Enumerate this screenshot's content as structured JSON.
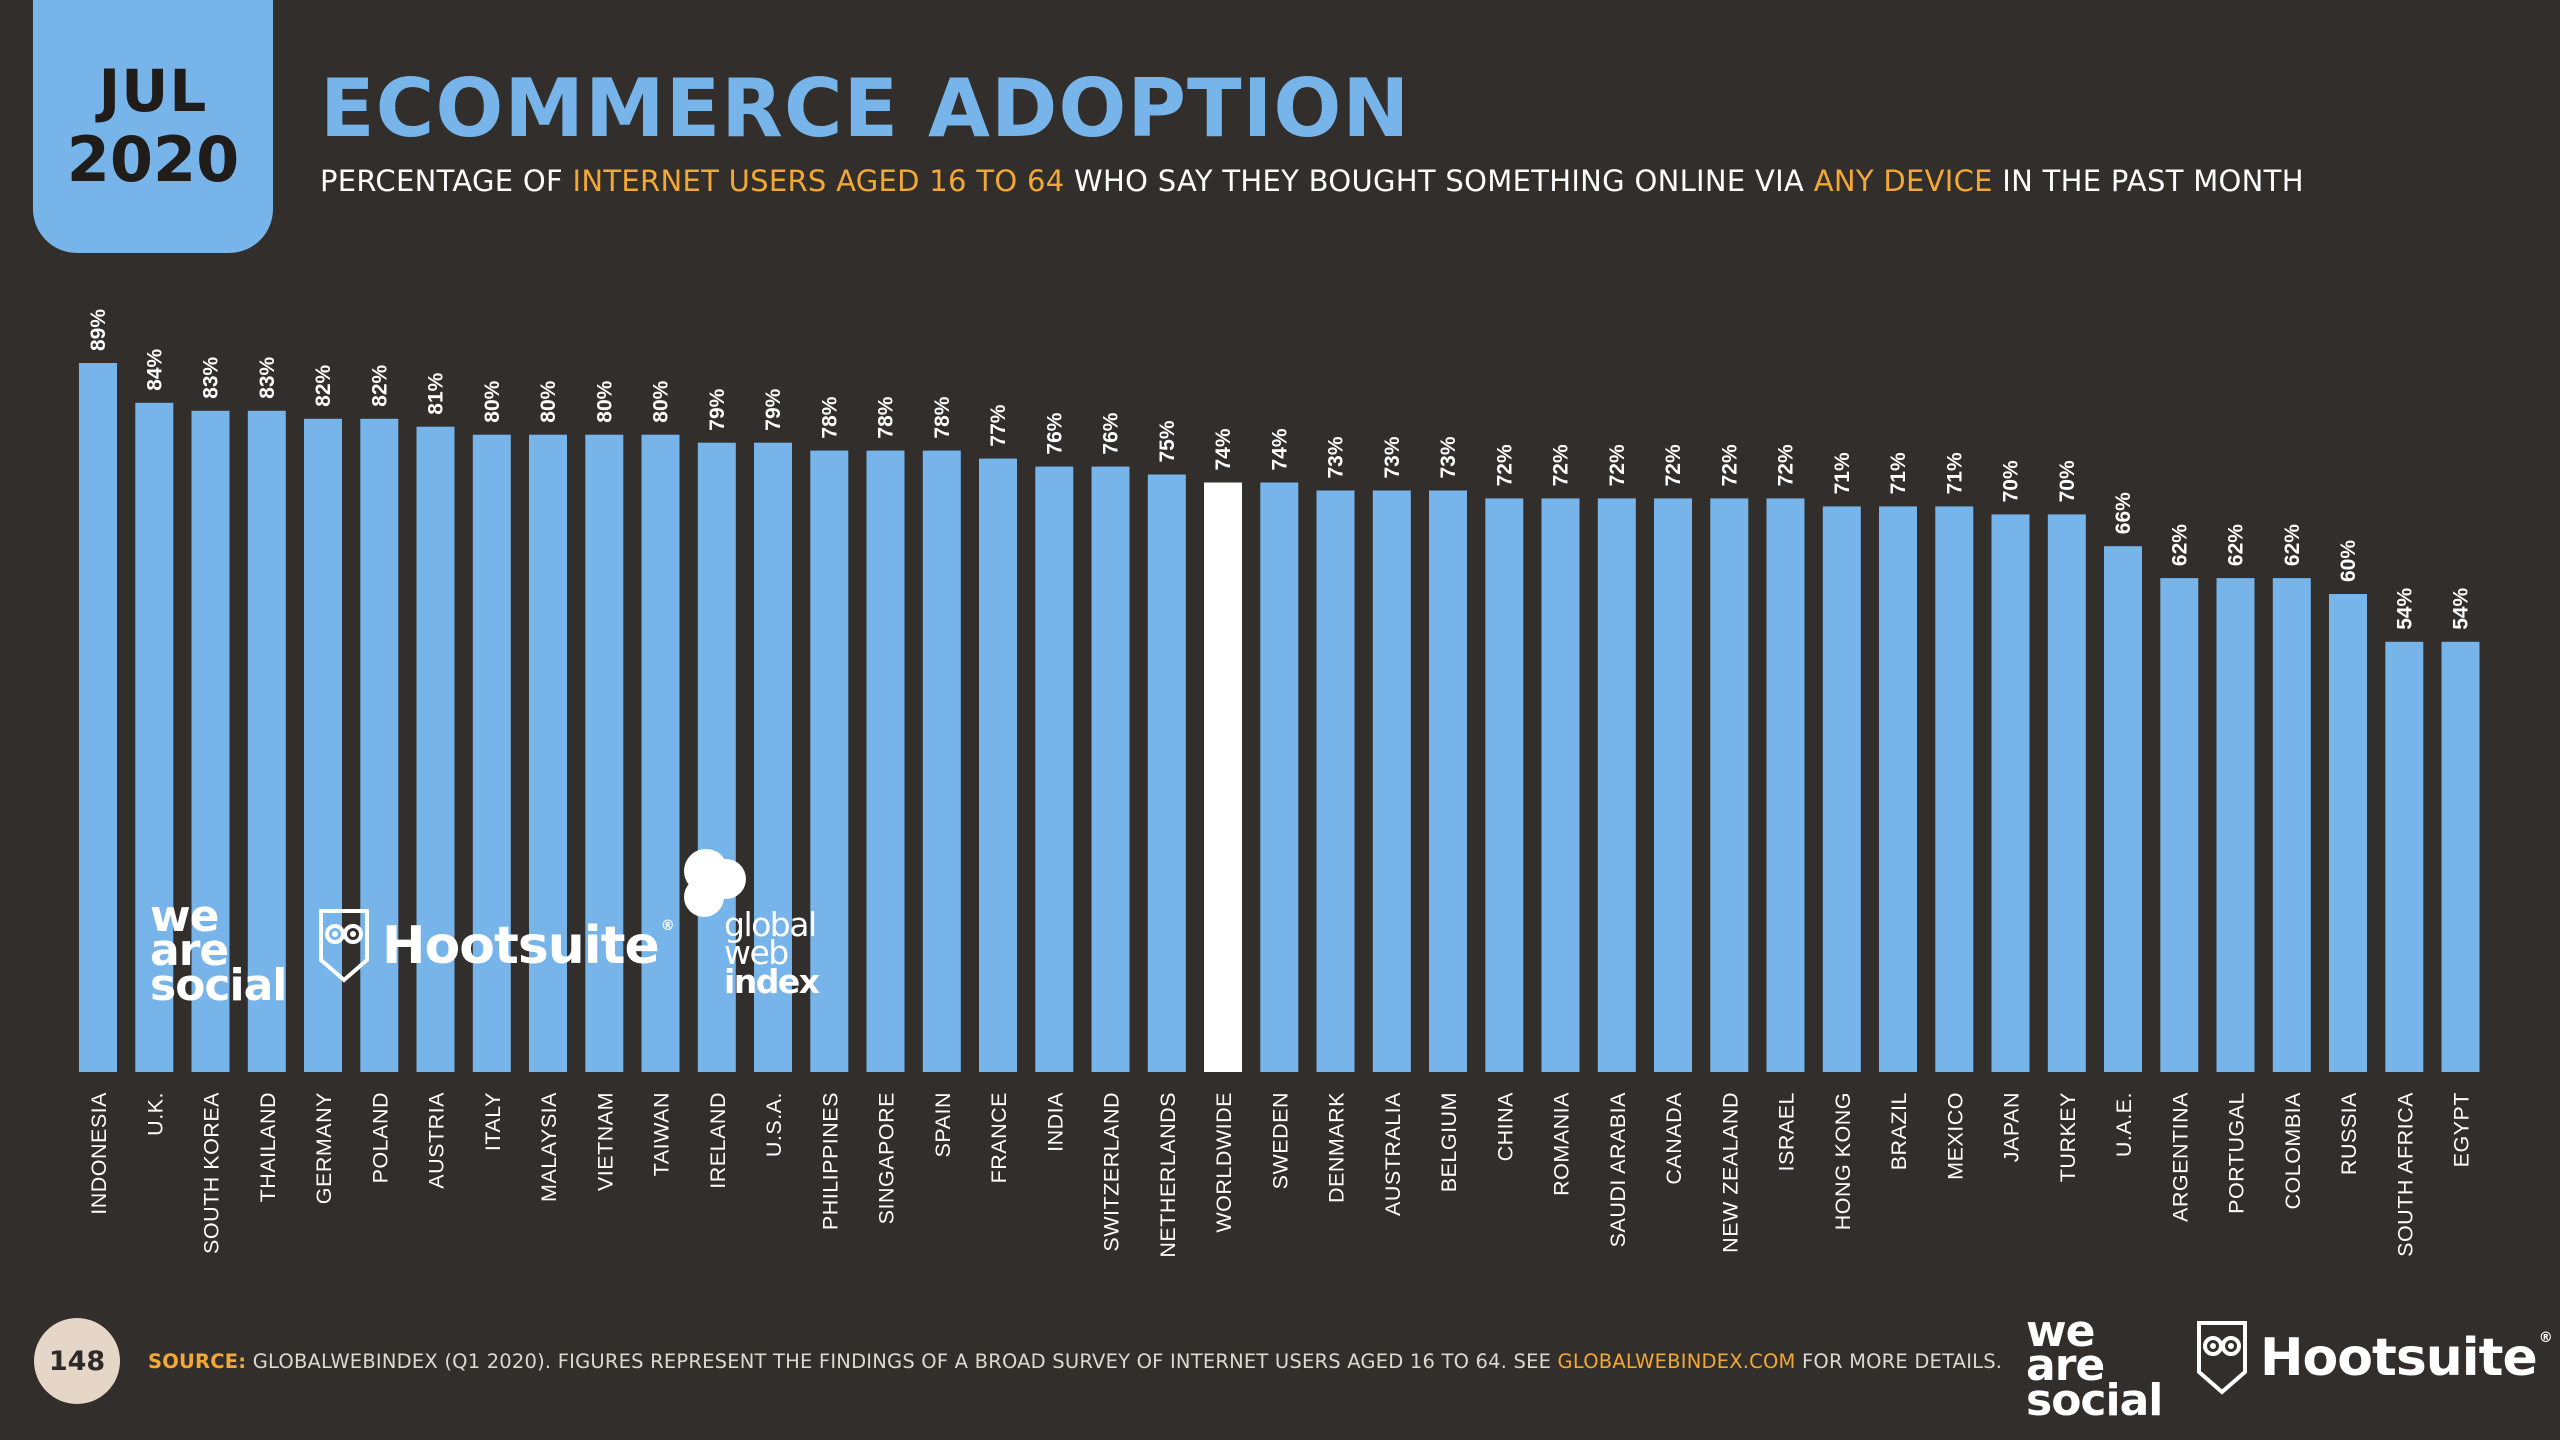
{
  "header": {
    "badge_month": "JUL",
    "badge_year": "2020",
    "title": "ECOMMERCE ADOPTION",
    "subtitle_parts": [
      "PERCENTAGE OF ",
      "INTERNET USERS AGED 16 TO 64",
      " WHO SAY THEY BOUGHT SOMETHING ONLINE VIA ",
      "ANY DEVICE",
      " IN THE PAST MONTH"
    ]
  },
  "footer": {
    "page_number": "148",
    "source_label": "SOURCE:",
    "source_text": " GLOBALWEBINDEX (Q1 2020). FIGURES REPRESENT THE FINDINGS OF A BROAD SURVEY OF INTERNET USERS AGED 16 TO 64. SEE ",
    "source_link": "GLOBALWEBINDEX.COM",
    "source_end": " FOR MORE DETAILS."
  },
  "logos": {
    "we_are_social": [
      "we",
      "are",
      "social"
    ],
    "hootsuite": "Hootsuite",
    "hootsuite_mark": "®",
    "gwi": [
      "global",
      "web",
      "index"
    ]
  },
  "colors": {
    "background": "#322e2b",
    "bar": "#77b4ea",
    "highlight_bar": "#ffffff",
    "accent": "#f2a833",
    "text": "#ffffff"
  },
  "chart_data": {
    "type": "bar",
    "title": "ECOMMERCE ADOPTION",
    "xlabel": "",
    "ylabel": "",
    "ylim": [
      0,
      100
    ],
    "highlight": "WORLDWIDE",
    "categories": [
      "INDONESIA",
      "U.K.",
      "SOUTH KOREA",
      "THAILAND",
      "GERMANY",
      "POLAND",
      "AUSTRIA",
      "ITALY",
      "MALAYSIA",
      "VIETNAM",
      "TAIWAN",
      "IRELAND",
      "U.S.A.",
      "PHILIPPINES",
      "SINGAPORE",
      "SPAIN",
      "FRANCE",
      "INDIA",
      "SWITZERLAND",
      "NETHERLANDS",
      "WORLDWIDE",
      "SWEDEN",
      "DENMARK",
      "AUSTRALIA",
      "BELGIUM",
      "CHINA",
      "ROMANIA",
      "SAUDI ARABIA",
      "CANADA",
      "NEW ZEALAND",
      "ISRAEL",
      "HONG KONG",
      "BRAZIL",
      "MEXICO",
      "JAPAN",
      "TURKEY",
      "U.A.E.",
      "ARGENTINA",
      "PORTUGAL",
      "COLOMBIA",
      "RUSSIA",
      "SOUTH AFRICA",
      "EGYPT"
    ],
    "values": [
      89,
      84,
      83,
      83,
      82,
      82,
      81,
      80,
      80,
      80,
      80,
      79,
      79,
      78,
      78,
      78,
      77,
      76,
      76,
      75,
      74,
      74,
      73,
      73,
      73,
      72,
      72,
      72,
      72,
      72,
      72,
      71,
      71,
      71,
      70,
      70,
      66,
      62,
      62,
      62,
      60,
      54,
      54
    ],
    "labels": [
      "89%",
      "84%",
      "83%",
      "83%",
      "82%",
      "82%",
      "81%",
      "80%",
      "80%",
      "80%",
      "80%",
      "79%",
      "79%",
      "78%",
      "78%",
      "78%",
      "77%",
      "76%",
      "76%",
      "75%",
      "74%",
      "74%",
      "73%",
      "73%",
      "73%",
      "72%",
      "72%",
      "72%",
      "72%",
      "72%",
      "72%",
      "71%",
      "71%",
      "71%",
      "70%",
      "70%",
      "66%",
      "62%",
      "62%",
      "62%",
      "60%",
      "54%",
      "54%"
    ]
  }
}
